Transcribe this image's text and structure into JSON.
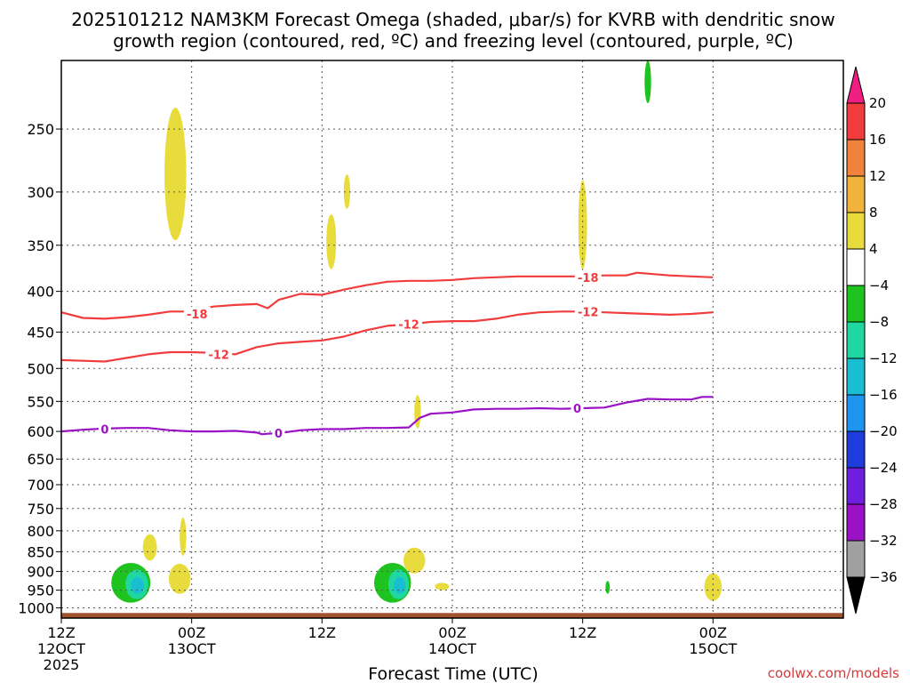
{
  "chart_data": {
    "type": "line",
    "title_line1": "2025101212 NAM3KM Forecast Omega (shaded, μbar/s) for KVRB with dendritic snow",
    "title_line2": "growth region (contoured, red, ºC) and freezing level (contoured, purple, ºC)",
    "xlabel": "Forecast Time (UTC)",
    "credit": "coolwx.com/models",
    "xlim": [
      0,
      72
    ],
    "ylim": [
      1030,
      205
    ],
    "y_scale": "log",
    "y_ticks": [
      250,
      300,
      350,
      400,
      450,
      500,
      550,
      600,
      650,
      700,
      750,
      800,
      850,
      900,
      950,
      1000
    ],
    "x_ticks": [
      {
        "x": 0,
        "lines": [
          "12Z",
          "12OCT",
          "2025"
        ]
      },
      {
        "x": 12,
        "lines": [
          "00Z",
          "13OCT"
        ]
      },
      {
        "x": 24,
        "lines": [
          "12Z"
        ]
      },
      {
        "x": 36,
        "lines": [
          "00Z",
          "14OCT"
        ]
      },
      {
        "x": 48,
        "lines": [
          "12Z"
        ]
      },
      {
        "x": 60,
        "lines": [
          "00Z",
          "15OCT"
        ]
      }
    ],
    "grid": true,
    "ground_pressure": 1015,
    "ground_color": "#a0522d",
    "series": [
      {
        "name": "-18",
        "color": "#f03c3c",
        "x": [
          0,
          2,
          4,
          6,
          8,
          10,
          12,
          14,
          16,
          18,
          19,
          20,
          22,
          24,
          26,
          28,
          30,
          32,
          34,
          36,
          38,
          40,
          42,
          44,
          46,
          48,
          50,
          52,
          53,
          54,
          56,
          58,
          60
        ],
        "y": [
          425,
          432,
          433,
          431,
          428,
          424,
          424,
          418,
          416,
          415,
          420,
          410,
          403,
          404,
          398,
          393,
          389,
          388,
          388,
          387,
          385,
          384,
          383,
          383,
          383,
          383,
          382,
          382,
          379,
          380,
          382,
          383,
          384
        ],
        "labels": [
          {
            "x": 12.5,
            "y": 427,
            "text": "-18"
          },
          {
            "x": 48.5,
            "y": 384,
            "text": "-18"
          }
        ]
      },
      {
        "name": "-12",
        "color": "#f03c3c",
        "x": [
          0,
          2,
          4,
          6,
          8,
          10,
          12,
          14,
          16,
          18,
          20,
          22,
          24,
          26,
          28,
          30,
          32,
          34,
          36,
          38,
          40,
          42,
          44,
          46,
          48,
          50,
          52,
          54,
          56,
          58,
          60
        ],
        "y": [
          488,
          489,
          490,
          485,
          480,
          477,
          477,
          478,
          480,
          470,
          465,
          463,
          461,
          456,
          448,
          442,
          440,
          437,
          436,
          436,
          433,
          428,
          425,
          424,
          424,
          425,
          426,
          427,
          428,
          427,
          425
        ],
        "labels": [
          {
            "x": 14.5,
            "y": 480,
            "text": "-12"
          },
          {
            "x": 32,
            "y": 440,
            "text": "-12"
          },
          {
            "x": 48.5,
            "y": 424,
            "text": "-12"
          }
        ]
      },
      {
        "name": "0",
        "color": "#9a11c6",
        "x": [
          0,
          2,
          4,
          6,
          8,
          10,
          12,
          14,
          16,
          18,
          18.5,
          19,
          20,
          22,
          24,
          26,
          28,
          30,
          32,
          33,
          34,
          36,
          38,
          40,
          42,
          44,
          46,
          48,
          50,
          52,
          54,
          56,
          58,
          59,
          60
        ],
        "y": [
          600,
          597,
          595,
          594,
          594,
          598,
          600,
          600,
          599,
          602,
          605,
          604,
          603,
          598,
          596,
          596,
          594,
          594,
          593,
          577,
          570,
          568,
          563,
          562,
          562,
          561,
          562,
          561,
          560,
          552,
          546,
          547,
          547,
          543,
          543
        ],
        "labels": [
          {
            "x": 4,
            "y": 596,
            "text": "0"
          },
          {
            "x": 20,
            "y": 603,
            "text": "0"
          },
          {
            "x": 47.5,
            "y": 561,
            "text": "0"
          }
        ]
      }
    ],
    "omega_regions": [
      {
        "bin": "4 to 8",
        "color": "#e8dc3c",
        "x": [
          9.5,
          11.5
        ],
        "p": [
          235,
          345
        ]
      },
      {
        "bin": "4 to 8",
        "color": "#e8dc3c",
        "x": [
          26,
          26.6
        ],
        "p": [
          285,
          315
        ]
      },
      {
        "bin": "4 to 8",
        "color": "#e8dc3c",
        "x": [
          24.4,
          25.3
        ],
        "p": [
          320,
          375
        ]
      },
      {
        "bin": "4 to 8",
        "color": "#e8dc3c",
        "x": [
          47.6,
          48.4
        ],
        "p": [
          290,
          375
        ]
      },
      {
        "bin": "4 to 8",
        "color": "#e8dc3c",
        "x": [
          32.5,
          33.1
        ],
        "p": [
          540,
          595
        ]
      },
      {
        "bin": "4 to 8",
        "color": "#e8dc3c",
        "x": [
          7.5,
          8.8
        ],
        "p": [
          808,
          872
        ]
      },
      {
        "bin": "4 to 8",
        "color": "#e8dc3c",
        "x": [
          10.9,
          11.5
        ],
        "p": [
          770,
          860
        ]
      },
      {
        "bin": "4 to 8",
        "color": "#e8dc3c",
        "x": [
          9.9,
          11.9
        ],
        "p": [
          880,
          960
        ]
      },
      {
        "bin": "4 to 8",
        "color": "#e8dc3c",
        "x": [
          31.5,
          33.5
        ],
        "p": [
          840,
          905
        ]
      },
      {
        "bin": "4 to 8",
        "color": "#e8dc3c",
        "x": [
          34.4,
          35.7
        ],
        "p": [
          930,
          950
        ]
      },
      {
        "bin": "4 to 8",
        "color": "#e8dc3c",
        "x": [
          59.2,
          60.8
        ],
        "p": [
          905,
          980
        ]
      },
      {
        "bin": "-8 to -4",
        "color": "#1fc31f",
        "x": [
          4.6,
          8.2
        ],
        "p": [
          878,
          985
        ]
      },
      {
        "bin": "-8 to -4",
        "color": "#1fc31f",
        "x": [
          28.8,
          32.2
        ],
        "p": [
          878,
          985
        ]
      },
      {
        "bin": "-8 to -4",
        "color": "#1fc31f",
        "x": [
          53.7,
          54.3
        ],
        "p": [
          205,
          232
        ]
      },
      {
        "bin": "-8 to -4",
        "color": "#1fc31f",
        "x": [
          50.1,
          50.5
        ],
        "p": [
          925,
          960
        ]
      },
      {
        "bin": "-12 to -8",
        "color": "#1fd7a0",
        "x": [
          5.9,
          8.0
        ],
        "p": [
          895,
          975
        ]
      },
      {
        "bin": "-12 to -8",
        "color": "#1fd7a0",
        "x": [
          30.1,
          32.0
        ],
        "p": [
          895,
          975
        ]
      },
      {
        "bin": "-16 to -12",
        "color": "#19bed2",
        "x": [
          6.4,
          7.6
        ],
        "p": [
          915,
          960
        ]
      },
      {
        "bin": "-16 to -12",
        "color": "#19bed2",
        "x": [
          30.6,
          31.7
        ],
        "p": [
          915,
          960
        ]
      }
    ],
    "colorbar": {
      "bins": [
        {
          "color": "#f01e82"
        },
        {
          "color": "#f03c3c"
        },
        {
          "color": "#f0823c"
        },
        {
          "color": "#f0b43c"
        },
        {
          "color": "#e8dc3c"
        },
        {
          "color": "#ffffff"
        },
        {
          "color": "#1fc31f"
        },
        {
          "color": "#1fd7a0"
        },
        {
          "color": "#19bed2"
        },
        {
          "color": "#1e96f0"
        },
        {
          "color": "#1e3cdc"
        },
        {
          "color": "#6e1edc"
        },
        {
          "color": "#9a11c6"
        },
        {
          "color": "#a0a0a0"
        },
        {
          "color": "#000000"
        }
      ],
      "labels": [
        "20",
        "16",
        "12",
        "8",
        "4",
        "−4",
        "−8",
        "−12",
        "−16",
        "−20",
        "−24",
        "−28",
        "−32",
        "−36"
      ]
    }
  }
}
